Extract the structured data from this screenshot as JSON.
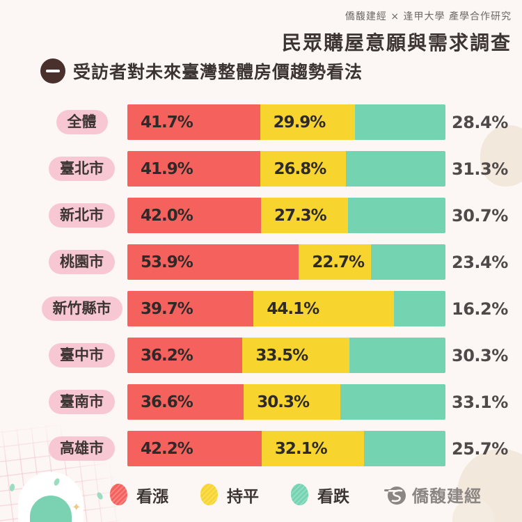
{
  "header": {
    "subtitle": "僑馥建經 × 逢甲大學 產學合作研究",
    "title": "民眾購屋意願與需求調查"
  },
  "section": {
    "badge": "一",
    "title": "受訪者對未來臺灣整體房價趨勢看法"
  },
  "chart_data": {
    "type": "bar",
    "orientation": "horizontal",
    "stacked": true,
    "unit": "%",
    "xlim": [
      0,
      100
    ],
    "grid": false,
    "legend_position": "bottom",
    "categories": [
      "全體",
      "臺北市",
      "新北市",
      "桃園市",
      "新竹縣市",
      "臺中市",
      "臺南市",
      "高雄市"
    ],
    "series": [
      {
        "key": "rise",
        "name": "看漲",
        "color": "#f5615c",
        "values": [
          41.7,
          41.9,
          42.0,
          53.9,
          39.7,
          36.2,
          36.6,
          42.2
        ]
      },
      {
        "key": "flat",
        "name": "持平",
        "color": "#f7d52e",
        "values": [
          29.9,
          26.8,
          27.3,
          22.7,
          44.1,
          33.5,
          30.3,
          32.1
        ]
      },
      {
        "key": "fall",
        "name": "看跌",
        "color": "#74d4b2",
        "values": [
          28.4,
          31.3,
          30.7,
          23.4,
          16.2,
          30.3,
          33.1,
          25.7
        ]
      }
    ],
    "value_label_style": "first two series inside bar, last series outside right"
  },
  "footer": {
    "brand": "僑馥建經"
  },
  "colors": {
    "background": "#fcf7f4",
    "category_pill": "#f7c8d3",
    "text_dark": "#3b3432",
    "value_in_bar": "#2e2a29",
    "value_outside": "#4f494a",
    "section_badge": "#4a302c",
    "brand_gray": "#8b8683",
    "deco_beige": "#f2e8dc",
    "deco_teal": "#7ad2b3"
  }
}
